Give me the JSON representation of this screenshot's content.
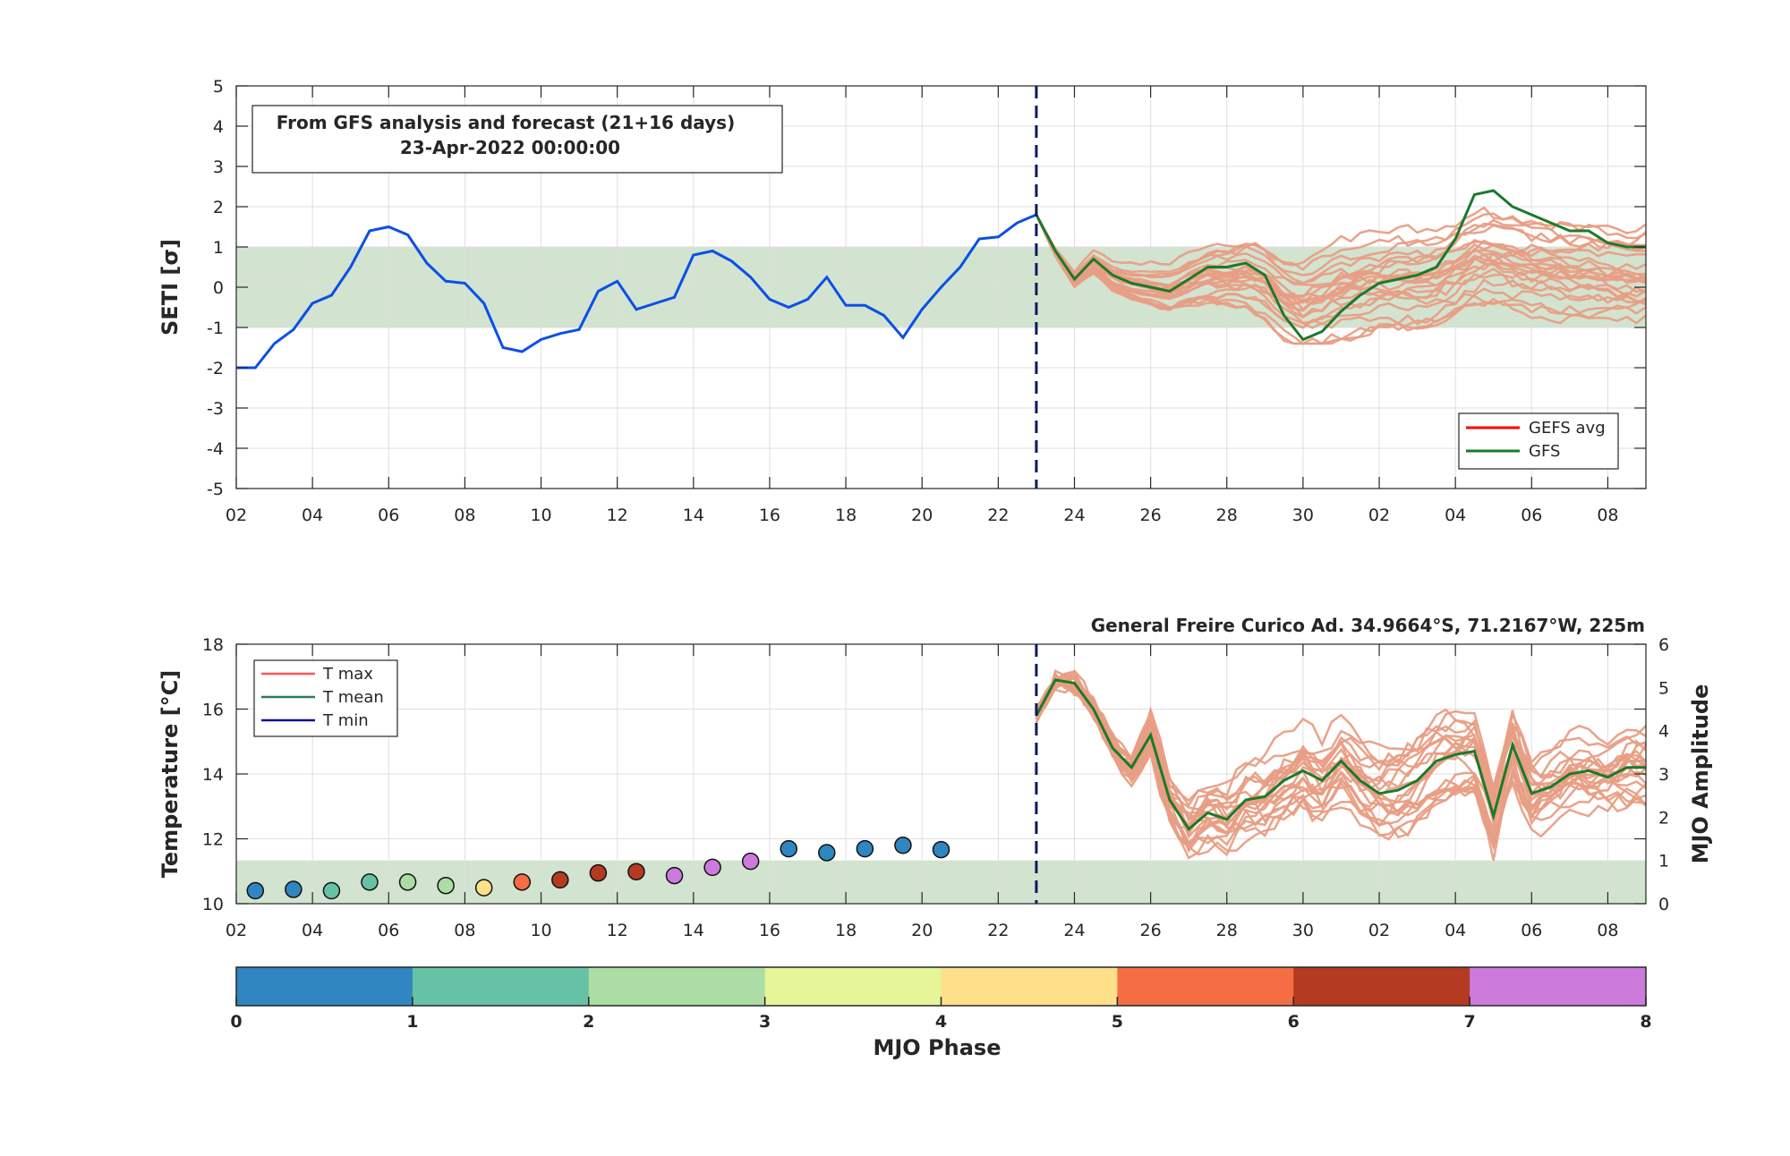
{
  "colors": {
    "seti_line": "#0a50e6",
    "gfs_line": "#1b7a2a",
    "ensemble_line": "#e89e84",
    "gefs_avg": "#ff0000",
    "normal_band": "#d2e3d0",
    "forecast_divider": "#0d1a5c",
    "t_max_legend": "#ff5555",
    "t_mean_legend": "#2a7a60",
    "t_min_legend": "#1010a0"
  },
  "chart_data": [
    {
      "type": "line",
      "info_box": {
        "line1": "From GFS analysis and forecast (21+16 days)",
        "line2": "23-Apr-2022 00:00:00"
      },
      "ylabel": "SETI [σ]",
      "ylim": [
        -5,
        5
      ],
      "yticks": [
        "-5",
        "-4",
        "-3",
        "-2",
        "-1",
        "0",
        "1",
        "2",
        "3",
        "4",
        "5"
      ],
      "xlim_days": [
        0,
        37
      ],
      "xticks": [
        "02",
        "04",
        "06",
        "08",
        "10",
        "12",
        "14",
        "16",
        "18",
        "20",
        "22",
        "24",
        "26",
        "28",
        "30",
        "02",
        "04",
        "06",
        "08"
      ],
      "normal_band": [
        -1,
        1
      ],
      "forecast_start_day": 21,
      "legend": {
        "placement": "bottom-right",
        "entries": [
          "GEFS avg",
          "GFS"
        ]
      },
      "series": [
        {
          "name": "SETI analysis",
          "x_days": [
            0,
            0.5,
            1,
            1.5,
            2,
            2.5,
            3,
            3.5,
            4,
            4.5,
            5,
            5.5,
            6,
            6.5,
            7,
            7.5,
            8,
            8.5,
            9,
            9.5,
            10,
            10.5,
            11,
            11.5,
            12,
            12.5,
            13,
            13.5,
            14,
            14.5,
            15,
            15.5,
            16,
            16.5,
            17,
            17.5,
            18,
            18.5,
            19,
            19.5,
            20,
            20.5,
            21
          ],
          "values": [
            -2.0,
            -2.0,
            -1.4,
            -1.05,
            -0.4,
            -0.2,
            0.5,
            1.4,
            1.5,
            1.3,
            0.6,
            0.15,
            0.1,
            -0.4,
            -1.5,
            -1.6,
            -1.3,
            -1.15,
            -1.05,
            -0.1,
            0.15,
            -0.55,
            -0.4,
            -0.25,
            0.8,
            0.9,
            0.65,
            0.25,
            -0.3,
            -0.5,
            -0.3,
            0.25,
            -0.45,
            -0.45,
            -0.7,
            -1.25,
            -0.55,
            0.0,
            0.5,
            1.2,
            1.25,
            1.6,
            1.8
          ]
        },
        {
          "name": "GFS",
          "x_days": [
            21,
            21.5,
            22,
            22.5,
            23,
            23.5,
            24,
            24.5,
            25,
            25.5,
            26,
            26.5,
            27,
            27.5,
            28,
            28.5,
            29,
            29.5,
            30,
            30.5,
            31,
            31.5,
            32,
            32.5,
            33,
            33.5,
            34,
            34.5,
            35,
            35.5,
            36,
            36.5,
            37
          ],
          "values": [
            1.8,
            0.9,
            0.2,
            0.7,
            0.3,
            0.1,
            0.0,
            -0.1,
            0.2,
            0.5,
            0.5,
            0.6,
            0.3,
            -0.7,
            -1.3,
            -1.1,
            -0.6,
            -0.2,
            0.1,
            0.2,
            0.3,
            0.5,
            1.2,
            2.3,
            2.4,
            2.0,
            1.8,
            1.6,
            1.4,
            1.4,
            1.1,
            1.0,
            1.0
          ]
        }
      ]
    },
    {
      "type": "line",
      "station_label": "General Freire Curico Ad. 34.9664°S, 71.2167°W, 225m",
      "ylabel": "Temperature [°C]",
      "ylabel_right": "MJO Amplitude",
      "ylim": [
        10,
        18
      ],
      "yticks": [
        "10",
        "12",
        "14",
        "16",
        "18"
      ],
      "y2lim": [
        0,
        6
      ],
      "y2ticks": [
        "0",
        "1",
        "2",
        "3",
        "4",
        "5",
        "6"
      ],
      "xlim_days": [
        0,
        37
      ],
      "xticks": [
        "02",
        "04",
        "06",
        "08",
        "10",
        "12",
        "14",
        "16",
        "18",
        "20",
        "22",
        "24",
        "26",
        "28",
        "30",
        "02",
        "04",
        "06",
        "08"
      ],
      "normal_band_mjo": [
        0,
        1
      ],
      "forecast_start_day": 21,
      "legend": {
        "placement": "top-left",
        "entries": [
          "T max",
          "T mean",
          "T min"
        ]
      },
      "series": [
        {
          "name": "T mean",
          "x_days": [
            21,
            21.5,
            22,
            22.5,
            23,
            23.5,
            24,
            24.5,
            25,
            25.5,
            26,
            26.5,
            27,
            27.5,
            28,
            28.5,
            29,
            29.5,
            30,
            30.5,
            31,
            31.5,
            32,
            32.5,
            33,
            33.5,
            34,
            34.5,
            35,
            35.5,
            36,
            36.5,
            37
          ],
          "values": [
            15.8,
            16.9,
            16.8,
            16.0,
            14.8,
            14.2,
            15.2,
            13.2,
            12.3,
            12.8,
            12.6,
            13.2,
            13.3,
            13.8,
            14.1,
            13.8,
            14.4,
            13.8,
            13.4,
            13.5,
            13.8,
            14.4,
            14.6,
            14.7,
            12.7,
            14.9,
            13.4,
            13.6,
            14.0,
            14.1,
            13.9,
            14.2,
            14.2
          ]
        }
      ],
      "mjo_points": {
        "x_days": [
          0.5,
          1.5,
          2.5,
          3.5,
          4.5,
          5.5,
          6.5,
          7.5,
          8.5,
          9.5,
          10.5,
          11.5,
          12.5,
          13.5,
          14.5,
          15.5,
          16.5,
          17.5,
          18.5
        ],
        "amplitude": [
          0.3,
          0.33,
          0.3,
          0.5,
          0.5,
          0.42,
          0.37,
          0.5,
          0.55,
          0.71,
          0.74,
          0.65,
          0.84,
          0.98,
          1.27,
          1.18,
          1.27,
          1.35,
          1.25
        ],
        "phase": [
          1,
          1,
          2,
          2,
          3,
          3,
          5,
          6,
          7,
          7,
          7,
          8,
          8,
          8,
          1,
          1,
          1,
          1,
          1
        ]
      }
    },
    {
      "type": "heatmap",
      "title": "MJO Phase",
      "ticks": [
        "0",
        "1",
        "2",
        "3",
        "4",
        "5",
        "6",
        "7",
        "8"
      ],
      "phase_colors": [
        "#2f86c0",
        "#66c2a5",
        "#abdda4",
        "#e6f598",
        "#fee08b",
        "#f46d43",
        "#b53a22",
        "#cc7adc"
      ]
    }
  ]
}
